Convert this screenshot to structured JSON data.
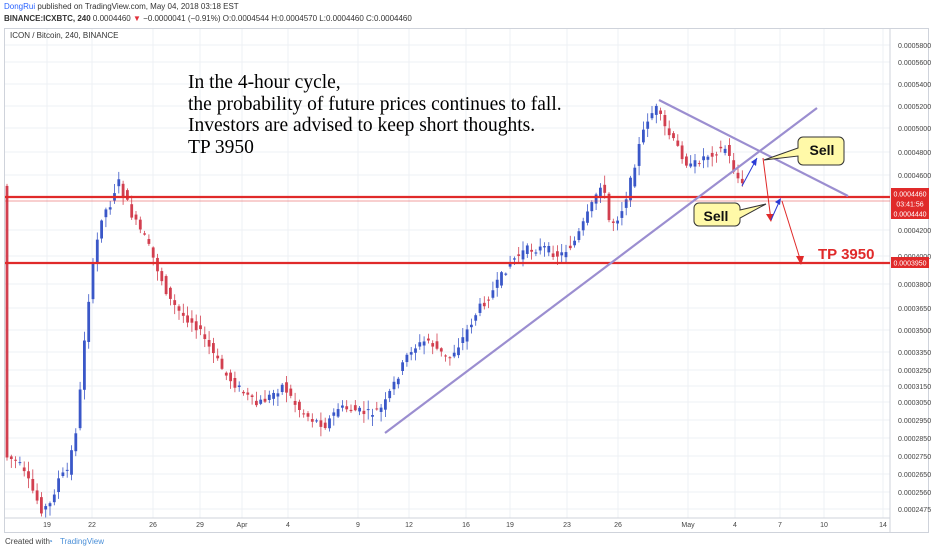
{
  "header": {
    "author": "DongRui",
    "published_text": " published on TradingView.com, May 04, 2018 03:18 EST",
    "symbol": "BINANCE:ICXBTC, 240",
    "last": "0.0004460",
    "change_text": "−0.0000041 (−0.91%)",
    "ohlc": "O:0.0004544 H:0.0004570 L:0.0004460 C:0.0004460"
  },
  "chart_title": "ICON / Bitcoin, 240, BINANCE",
  "annotation_lines": [
    "In the 4-hour cycle,",
    "the probability of future prices continues to fall.",
    "Investors are advised to keep short thoughts.",
    "TP  3950"
  ],
  "footer": {
    "created_with": "Created with",
    "brand": "TradingView"
  },
  "colors": {
    "bull": "#3a57c8",
    "bear": "#d23f4f",
    "trendline": "#9b8ed0",
    "support": "#e02a2a",
    "callout_fill": "#fff9a8",
    "price_tag": "#e02a2a"
  },
  "chart_data": {
    "type": "candlestick",
    "y_tick_labels": [
      "0.0005800",
      "0.0005600",
      "0.0005400",
      "0.0005200",
      "0.0005000",
      "0.0004800",
      "0.0004600",
      "0.0004200",
      "0.0004000",
      "0.0003800",
      "0.0003650",
      "0.0003500",
      "0.0003350",
      "0.0003250",
      "0.0003150",
      "0.0003050",
      "0.0002950",
      "0.0002850",
      "0.0002750",
      "0.0002650",
      "0.0002560",
      "0.0002475"
    ],
    "x_tick_labels": [
      "19",
      "22",
      "26",
      "29",
      "Apr",
      "4",
      "9",
      "12",
      "16",
      "19",
      "23",
      "26",
      "May",
      "4",
      "7",
      "10",
      "14"
    ],
    "ylim": [
      0.0002475,
      0.00058
    ],
    "current_price_label": "0.0004460",
    "countdown_label": "03:41:56",
    "support_level_label": "0.0004440",
    "target_level_label": "0.0003950",
    "support_level": 0.000444,
    "target_level": 0.000395,
    "callouts": [
      {
        "text": "Sell",
        "note": "upper callout near triangle apex"
      },
      {
        "text": "Sell",
        "note": "lower callout below support retest"
      }
    ],
    "target_label": "TP 3950",
    "trendlines": [
      "ascending support line from April low",
      "descending resistance line from late-April high"
    ],
    "grid": true
  }
}
